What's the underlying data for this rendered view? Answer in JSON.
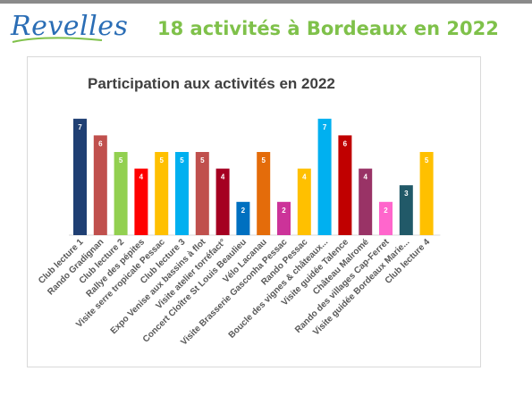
{
  "header": {
    "logo_text": "Revelles",
    "title": "18 activités à Bordeaux en 2022"
  },
  "colors": {
    "logo": "#2a6db5",
    "title": "#7fc14a",
    "top_rule": "#8a8a8a"
  },
  "chart_data": {
    "type": "bar",
    "title": "Participation aux activités en 2022",
    "xlabel": "",
    "ylabel": "",
    "ylim": [
      0,
      8
    ],
    "grid": false,
    "categories": [
      "Club lecture 1",
      "Rando Gradignan",
      "Club lecture 2",
      "Rallye des pépites",
      "Visite serre tropicale Pessac",
      "Club lecture 3",
      "Expo Venise aux bassins à flot",
      "Visite atelier torréfact°",
      "Concert Cloître St Louis Beaulieu",
      "Vélo Lacanau",
      "Visite Brasserie Gasconha Pessac",
      "Rando Pessac",
      "Boucle des vignes & châteaux...",
      "Visite guidée Talence",
      "Château Malromé",
      "Rando des villages Cap-Ferret",
      "Visite guidée Bordeaux Marie...",
      "Club lecture 4"
    ],
    "values": [
      7,
      6,
      5,
      4,
      5,
      5,
      5,
      4,
      2,
      5,
      2,
      4,
      7,
      6,
      4,
      2,
      3,
      5
    ],
    "bar_colors": [
      "#1f3f73",
      "#c0504d",
      "#92d050",
      "#ff0000",
      "#ffc000",
      "#00b0f0",
      "#c0504d",
      "#a50021",
      "#0070c0",
      "#e46c0a",
      "#cc3399",
      "#ffc000",
      "#00b0f0",
      "#c00000",
      "#993366",
      "#ff66cc",
      "#215968",
      "#ffc000"
    ]
  }
}
